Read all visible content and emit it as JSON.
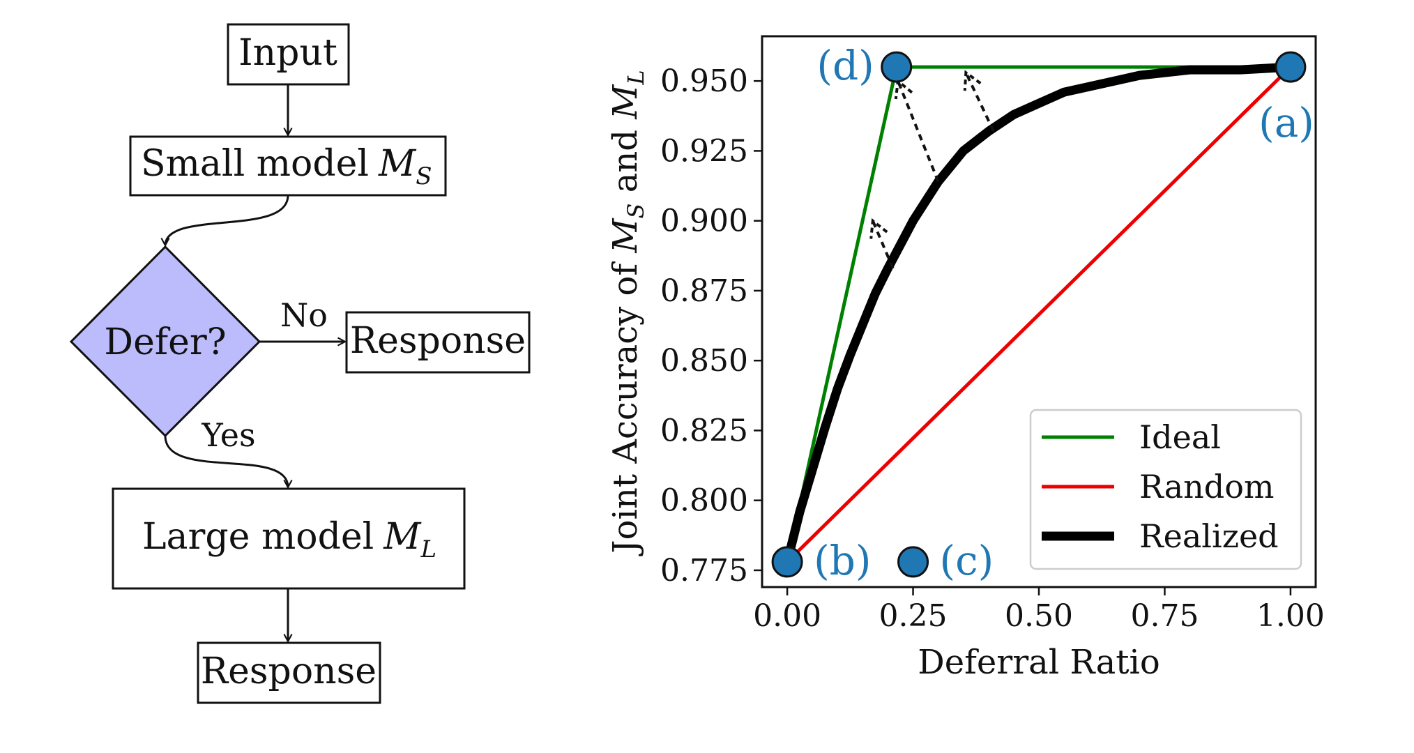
{
  "flowchart": {
    "nodes": {
      "input": "Input",
      "small_model": "Small model",
      "small_model_symbol": "M",
      "small_model_sub": "S",
      "decision": "Defer?",
      "response_no": "Response",
      "large_model": "Large model",
      "large_model_symbol": "M",
      "large_model_sub": "L",
      "response_final": "Response"
    },
    "edges": {
      "no_label": "No",
      "yes_label": "Yes"
    },
    "colors": {
      "decision_fill": "#bcbcfc"
    }
  },
  "chart_data": {
    "type": "line",
    "xlabel": "Deferral Ratio",
    "ylabel_prefix": "Joint Accuracy of ",
    "ylabel_m": "M",
    "ylabel_s": "S",
    "ylabel_and": " and ",
    "ylabel_l": "L",
    "xlim": [
      -0.05,
      1.05
    ],
    "ylim": [
      0.769,
      0.966
    ],
    "xticks": [
      0.0,
      0.25,
      0.5,
      0.75,
      1.0
    ],
    "xtick_labels": [
      "0.00",
      "0.25",
      "0.50",
      "0.75",
      "1.00"
    ],
    "yticks": [
      0.775,
      0.8,
      0.825,
      0.85,
      0.875,
      0.9,
      0.925,
      0.95
    ],
    "ytick_labels": [
      "0.775",
      "0.800",
      "0.825",
      "0.850",
      "0.875",
      "0.900",
      "0.925",
      "0.950"
    ],
    "grid": false,
    "legend_position": "lower-right",
    "series": [
      {
        "name": "Ideal",
        "color": "#008000",
        "x": [
          0.0,
          0.217,
          1.0
        ],
        "y": [
          0.778,
          0.955,
          0.955
        ]
      },
      {
        "name": "Random",
        "color": "#ee0000",
        "x": [
          0.0,
          1.0
        ],
        "y": [
          0.778,
          0.955
        ]
      },
      {
        "name": "Realized",
        "color": "#000000",
        "x": [
          0.0,
          0.025,
          0.05,
          0.075,
          0.1,
          0.125,
          0.15,
          0.175,
          0.2,
          0.25,
          0.3,
          0.35,
          0.4,
          0.45,
          0.5,
          0.55,
          0.6,
          0.65,
          0.7,
          0.75,
          0.8,
          0.9,
          1.0
        ],
        "y": [
          0.778,
          0.796,
          0.811,
          0.826,
          0.84,
          0.852,
          0.863,
          0.874,
          0.883,
          0.9,
          0.914,
          0.925,
          0.932,
          0.938,
          0.942,
          0.946,
          0.948,
          0.95,
          0.952,
          0.953,
          0.954,
          0.954,
          0.955
        ]
      }
    ],
    "points": [
      {
        "label": "(a)",
        "x": 1.0,
        "y": 0.955,
        "label_anchor": "below-right"
      },
      {
        "label": "(b)",
        "x": 0.0,
        "y": 0.778,
        "label_anchor": "right"
      },
      {
        "label": "(c)",
        "x": 0.25,
        "y": 0.778,
        "label_anchor": "right"
      },
      {
        "label": "(d)",
        "x": 0.217,
        "y": 0.955,
        "label_anchor": "left"
      }
    ],
    "point_color": "#1f77b4",
    "arrows": [
      {
        "from": [
          0.21,
          0.883
        ],
        "to": [
          0.17,
          0.9
        ]
      },
      {
        "from": [
          0.3,
          0.914
        ],
        "to": [
          0.22,
          0.95
        ]
      },
      {
        "from": [
          0.41,
          0.932
        ],
        "to": [
          0.355,
          0.953
        ]
      }
    ]
  }
}
